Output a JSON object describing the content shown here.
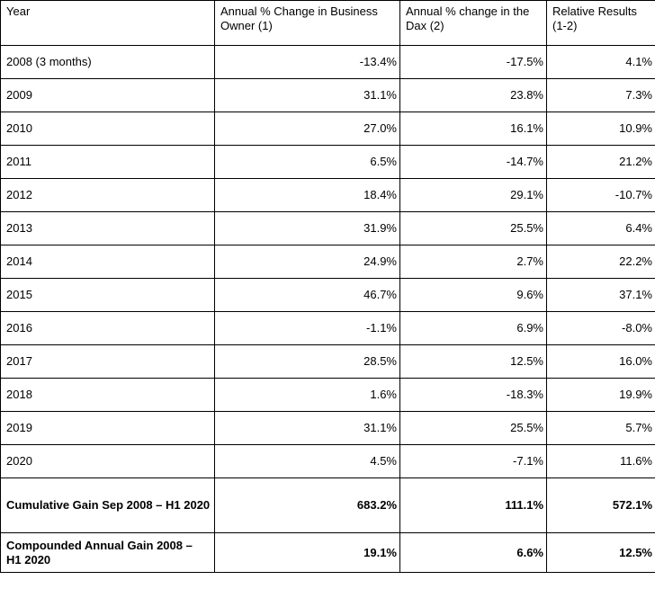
{
  "table": {
    "columns": [
      "Year",
      "Annual % Change in Business Owner (1)",
      "Annual % change in the Dax (2)",
      "Relative Results (1-2)"
    ],
    "rows": [
      [
        "2008 (3 months)",
        "-13.4%",
        "-17.5%",
        "4.1%"
      ],
      [
        "2009",
        "31.1%",
        "23.8%",
        "7.3%"
      ],
      [
        "2010",
        "27.0%",
        "16.1%",
        "10.9%"
      ],
      [
        "2011",
        "6.5%",
        "-14.7%",
        "21.2%"
      ],
      [
        "2012",
        "18.4%",
        "29.1%",
        "-10.7%"
      ],
      [
        "2013",
        "31.9%",
        "25.5%",
        "6.4%"
      ],
      [
        "2014",
        "24.9%",
        "2.7%",
        "22.2%"
      ],
      [
        "2015",
        "46.7%",
        "9.6%",
        "37.1%"
      ],
      [
        "2016",
        "-1.1%",
        "6.9%",
        "-8.0%"
      ],
      [
        "2017",
        "28.5%",
        "12.5%",
        "16.0%"
      ],
      [
        "2018",
        "1.6%",
        "-18.3%",
        "19.9%"
      ],
      [
        "2019",
        "31.1%",
        "25.5%",
        "5.7%"
      ],
      [
        "2020",
        "4.5%",
        "-7.1%",
        "11.6%"
      ]
    ],
    "summary_rows": [
      [
        "Cumulative Gain Sep 2008 – H1 2020",
        "683.2%",
        "111.1%",
        "572.1%"
      ],
      [
        "Compounded Annual Gain 2008 – H1 2020",
        "19.1%",
        "6.6%",
        "12.5%"
      ]
    ]
  },
  "colors": {
    "border": "#000000",
    "text": "#000000",
    "background": "#ffffff"
  }
}
